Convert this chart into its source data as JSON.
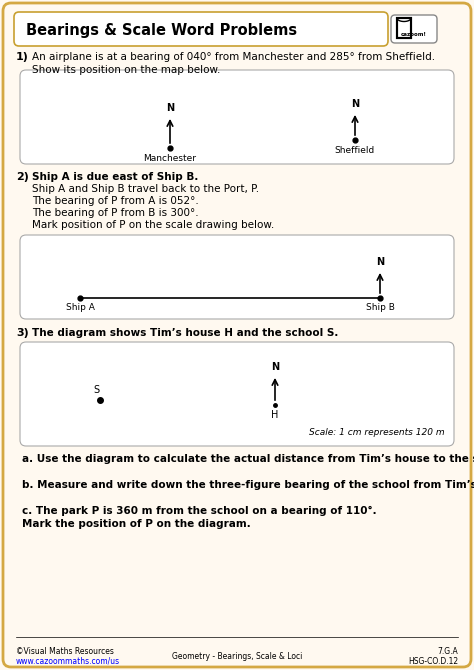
{
  "title": "Bearings & Scale Word Problems",
  "bg_color": "#FFF9F0",
  "border_color": "#D4A843",
  "box_bg": "#FFFFFF",
  "text_color": "#000000",
  "q1_text_a": "An airplane is at a bearing of 040° from Manchester and 285° from Sheffield.",
  "q1_text_b": "Show its position on the map below.",
  "q2_line1": "Ship A is due east of Ship B.",
  "q2_line2": "Ship A and Ship B travel back to the Port, P.",
  "q2_line3": "The bearing of P from A is 052°.",
  "q2_line4": "The bearing of P from B is 300°.",
  "q2_line5": "Mark position of P on the scale drawing below.",
  "q3_text": "The diagram shows Tim’s house H and the school S.",
  "q3a_text": "a. Use the diagram to calculate the actual distance from Tim’s house to the school.",
  "q3b_text": "b. Measure and write down the three-figure bearing of the school from Tim’s house.",
  "q3c_line1": "c. The park P is 360 m from the school on a bearing of 110°.",
  "q3c_line2": "Mark the position of P on the diagram.",
  "scale_text": "Scale: 1 cm represents 120 m",
  "footer_left1": "©Visual Maths Resources",
  "footer_left2": "www.cazoommaths.com/us",
  "footer_center": "Geometry - Bearings, Scale & Loci",
  "footer_right1": "7.G.A",
  "footer_right2": "HSG-CO.D.12"
}
